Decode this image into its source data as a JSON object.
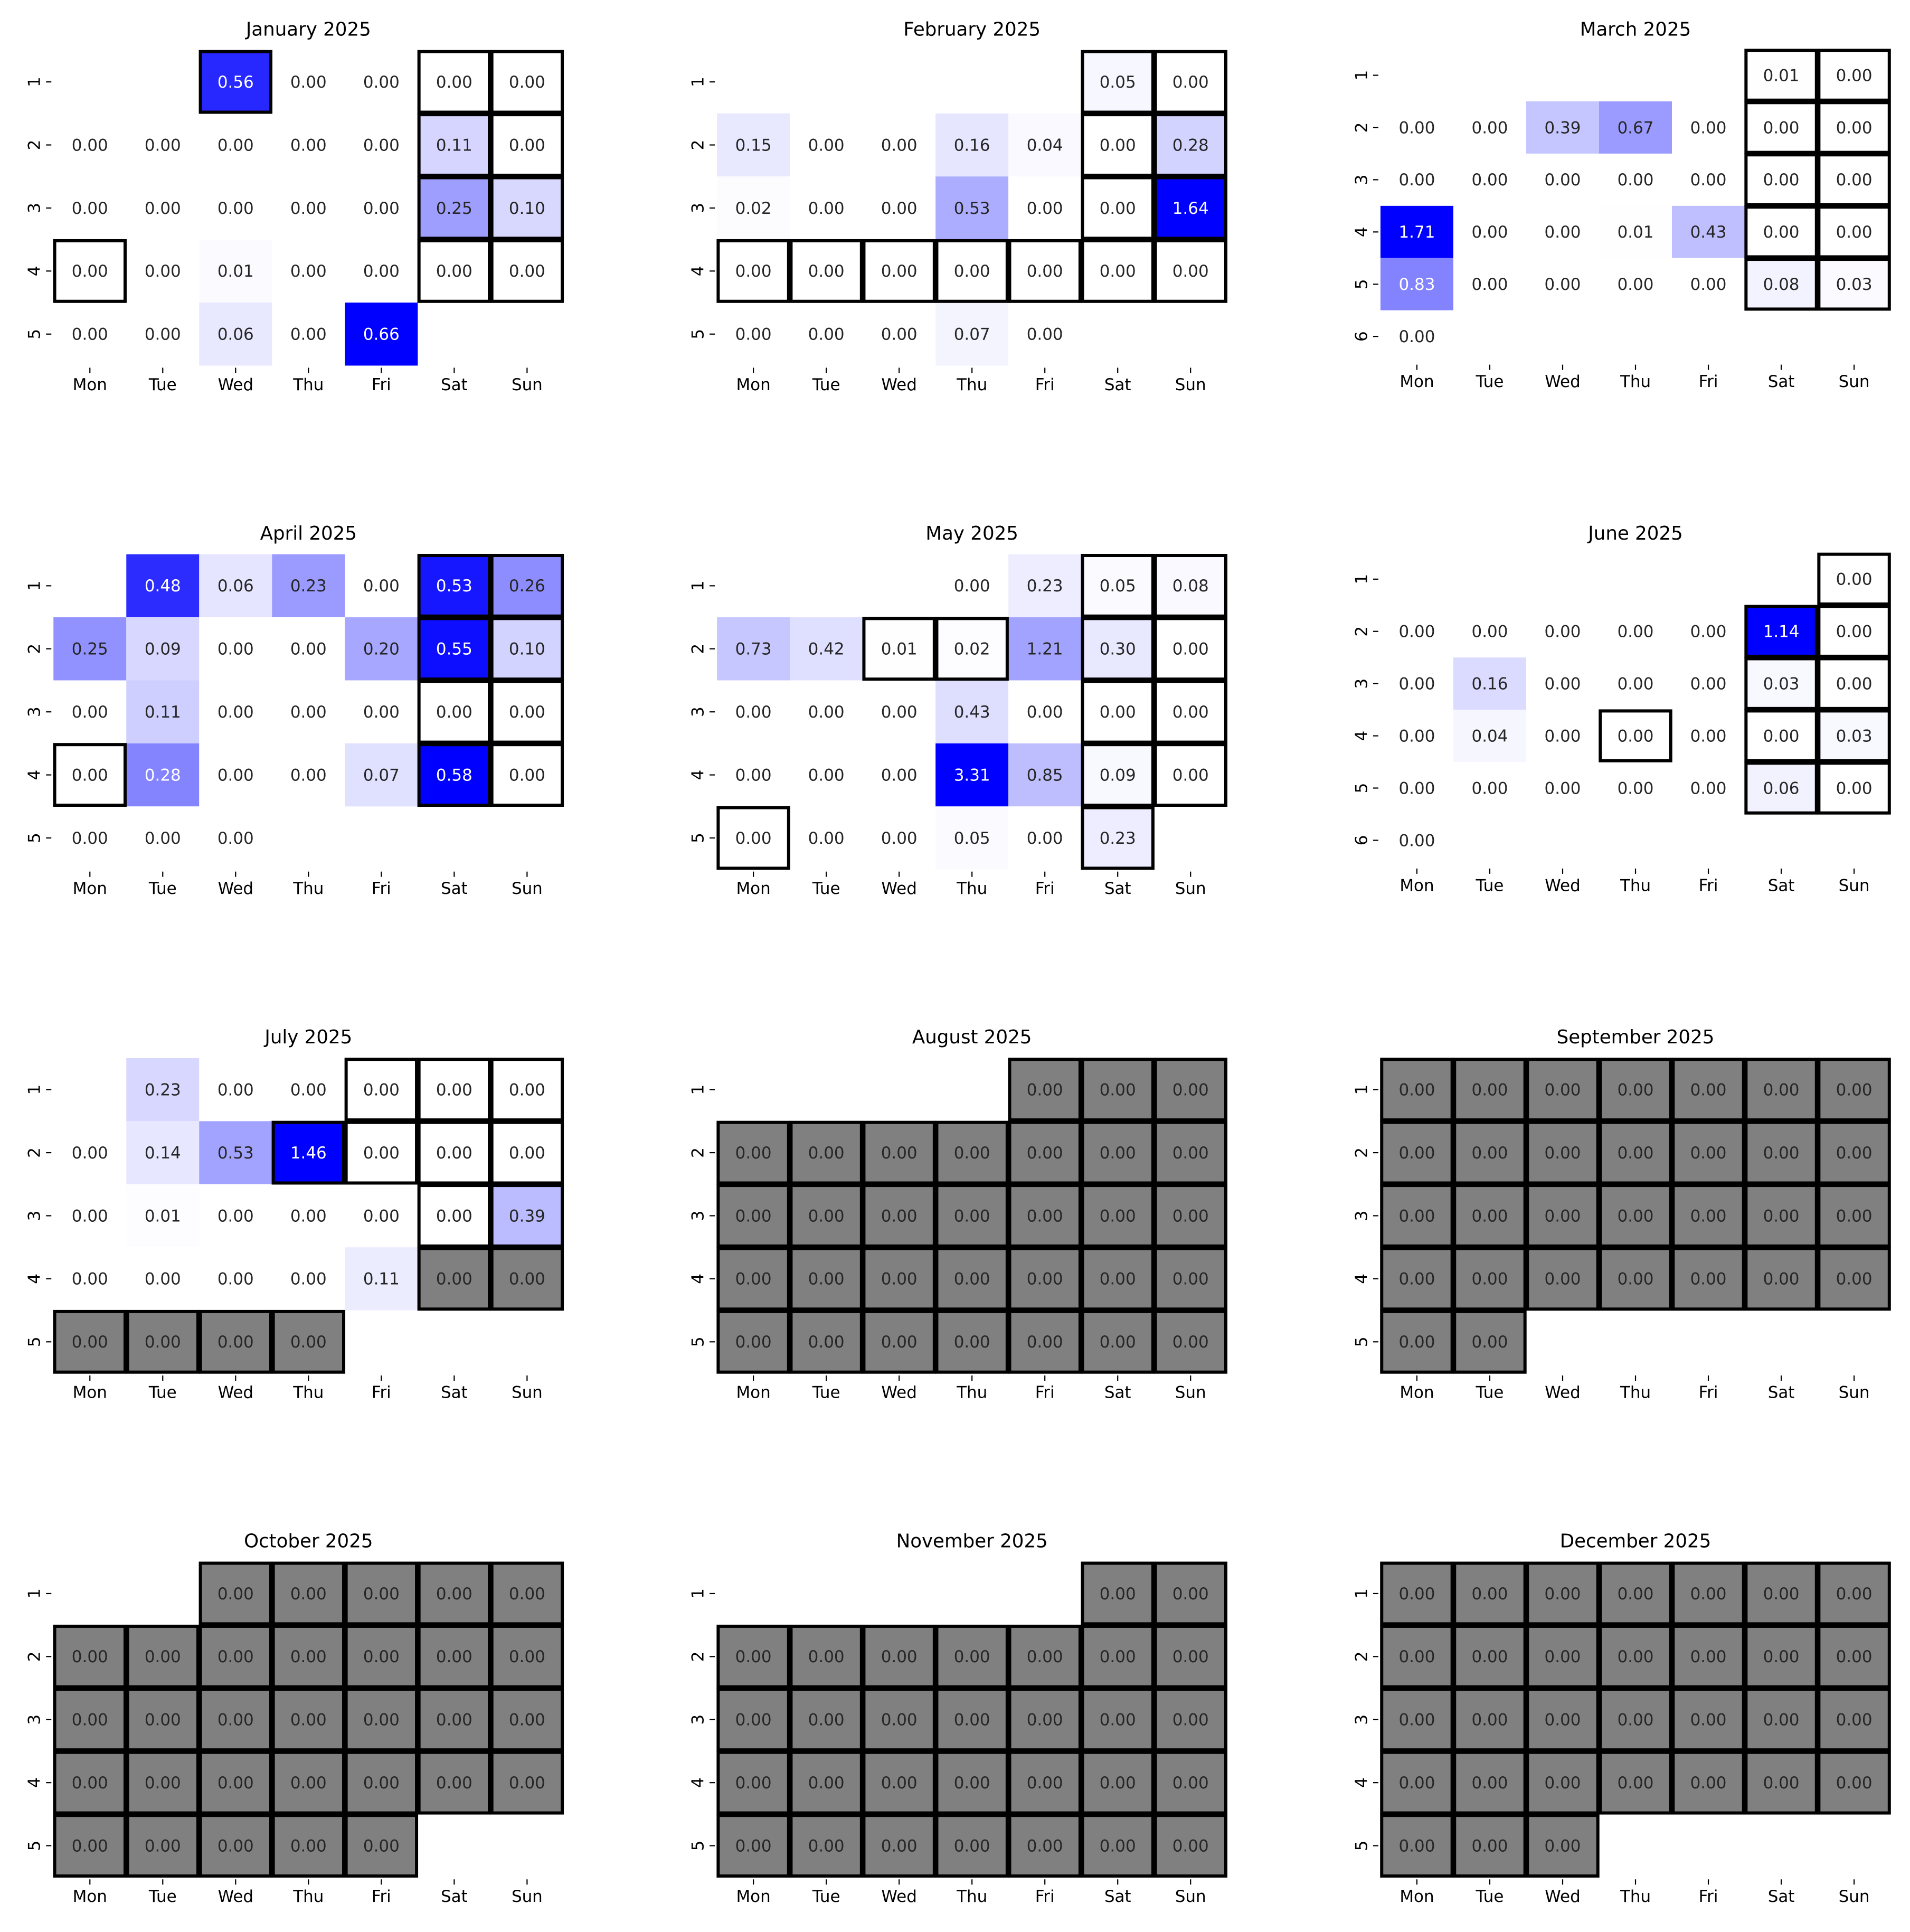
{
  "figure": {
    "weekday_labels": [
      "Mon",
      "Tue",
      "Wed",
      "Thu",
      "Fri",
      "Sat",
      "Sun"
    ],
    "colors": {
      "scale_low": "#ffffff",
      "scale_high": "#0000ff",
      "missing_fill": "#808080",
      "outline": "#000000"
    }
  },
  "chart_data": [
    {
      "type": "heatmap",
      "title": "January 2025",
      "week_labels": [
        "1",
        "2",
        "3",
        "4",
        "5"
      ],
      "values": [
        [
          null,
          null,
          0.56,
          0.0,
          0.0,
          0.0,
          0.0
        ],
        [
          0.0,
          0.0,
          0.0,
          0.0,
          0.0,
          0.11,
          0.0
        ],
        [
          0.0,
          0.0,
          0.0,
          0.0,
          0.0,
          0.25,
          0.1
        ],
        [
          0.0,
          0.0,
          0.01,
          0.0,
          0.0,
          0.0,
          0.0
        ],
        [
          0.0,
          0.0,
          0.06,
          0.0,
          0.66,
          null,
          null
        ]
      ],
      "missing": [],
      "outlined": [
        [
          0,
          2
        ],
        [
          0,
          5
        ],
        [
          0,
          6
        ],
        [
          1,
          5
        ],
        [
          1,
          6
        ],
        [
          2,
          5
        ],
        [
          2,
          6
        ],
        [
          3,
          0
        ],
        [
          3,
          5
        ],
        [
          3,
          6
        ]
      ]
    },
    {
      "type": "heatmap",
      "title": "February 2025",
      "week_labels": [
        "1",
        "2",
        "3",
        "4",
        "5"
      ],
      "values": [
        [
          null,
          null,
          null,
          null,
          null,
          0.05,
          0.0
        ],
        [
          0.15,
          0.0,
          0.0,
          0.16,
          0.04,
          0.0,
          0.28
        ],
        [
          0.02,
          0.0,
          0.0,
          0.53,
          0.0,
          0.0,
          1.64
        ],
        [
          0.0,
          0.0,
          0.0,
          0.0,
          0.0,
          0.0,
          0.0
        ],
        [
          0.0,
          0.0,
          0.0,
          0.07,
          0.0,
          null,
          null
        ]
      ],
      "missing": [],
      "outlined": [
        [
          0,
          5
        ],
        [
          0,
          6
        ],
        [
          1,
          5
        ],
        [
          1,
          6
        ],
        [
          2,
          5
        ],
        [
          2,
          6
        ],
        [
          3,
          0
        ],
        [
          3,
          1
        ],
        [
          3,
          2
        ],
        [
          3,
          3
        ],
        [
          3,
          4
        ],
        [
          3,
          5
        ],
        [
          3,
          6
        ]
      ]
    },
    {
      "type": "heatmap",
      "title": "March 2025",
      "week_labels": [
        "1",
        "2",
        "3",
        "4",
        "5",
        "6"
      ],
      "values": [
        [
          null,
          null,
          null,
          null,
          null,
          0.01,
          0.0
        ],
        [
          0.0,
          0.0,
          0.39,
          0.67,
          0.0,
          0.0,
          0.0
        ],
        [
          0.0,
          0.0,
          0.0,
          0.0,
          0.0,
          0.0,
          0.0
        ],
        [
          1.71,
          0.0,
          0.0,
          0.01,
          0.43,
          0.0,
          0.0
        ],
        [
          0.83,
          0.0,
          0.0,
          0.0,
          0.0,
          0.08,
          0.03
        ],
        [
          0.0,
          null,
          null,
          null,
          null,
          null,
          null
        ]
      ],
      "missing": [],
      "outlined": [
        [
          0,
          5
        ],
        [
          0,
          6
        ],
        [
          1,
          5
        ],
        [
          1,
          6
        ],
        [
          2,
          5
        ],
        [
          2,
          6
        ],
        [
          3,
          5
        ],
        [
          3,
          6
        ],
        [
          4,
          5
        ],
        [
          4,
          6
        ]
      ]
    },
    {
      "type": "heatmap",
      "title": "April 2025",
      "week_labels": [
        "1",
        "2",
        "3",
        "4",
        "5"
      ],
      "values": [
        [
          null,
          0.48,
          0.06,
          0.23,
          0.0,
          0.53,
          0.26
        ],
        [
          0.25,
          0.09,
          0.0,
          0.0,
          0.2,
          0.55,
          0.1
        ],
        [
          0.0,
          0.11,
          0.0,
          0.0,
          0.0,
          0.0,
          0.0
        ],
        [
          0.0,
          0.28,
          0.0,
          0.0,
          0.07,
          0.58,
          0.0
        ],
        [
          0.0,
          0.0,
          0.0,
          null,
          null,
          null,
          null
        ]
      ],
      "missing": [],
      "outlined": [
        [
          0,
          5
        ],
        [
          0,
          6
        ],
        [
          1,
          5
        ],
        [
          1,
          6
        ],
        [
          2,
          5
        ],
        [
          2,
          6
        ],
        [
          3,
          0
        ],
        [
          3,
          5
        ],
        [
          3,
          6
        ]
      ]
    },
    {
      "type": "heatmap",
      "title": "May 2025",
      "week_labels": [
        "1",
        "2",
        "3",
        "4",
        "5"
      ],
      "values": [
        [
          null,
          null,
          null,
          0.0,
          0.23,
          0.05,
          0.08
        ],
        [
          0.73,
          0.42,
          0.01,
          0.02,
          1.21,
          0.3,
          0.0
        ],
        [
          0.0,
          0.0,
          0.0,
          0.43,
          0.0,
          0.0,
          0.0
        ],
        [
          0.0,
          0.0,
          0.0,
          3.31,
          0.85,
          0.09,
          0.0
        ],
        [
          0.0,
          0.0,
          0.0,
          0.05,
          0.0,
          0.23,
          null
        ]
      ],
      "missing": [],
      "outlined": [
        [
          0,
          5
        ],
        [
          0,
          6
        ],
        [
          1,
          2
        ],
        [
          1,
          3
        ],
        [
          1,
          5
        ],
        [
          1,
          6
        ],
        [
          2,
          5
        ],
        [
          2,
          6
        ],
        [
          3,
          5
        ],
        [
          3,
          6
        ],
        [
          4,
          0
        ],
        [
          4,
          5
        ]
      ]
    },
    {
      "type": "heatmap",
      "title": "June 2025",
      "week_labels": [
        "1",
        "2",
        "3",
        "4",
        "5",
        "6"
      ],
      "values": [
        [
          null,
          null,
          null,
          null,
          null,
          null,
          0.0
        ],
        [
          0.0,
          0.0,
          0.0,
          0.0,
          0.0,
          1.14,
          0.0
        ],
        [
          0.0,
          0.16,
          0.0,
          0.0,
          0.0,
          0.03,
          0.0
        ],
        [
          0.0,
          0.04,
          0.0,
          0.0,
          0.0,
          0.0,
          0.03
        ],
        [
          0.0,
          0.0,
          0.0,
          0.0,
          0.0,
          0.06,
          0.0
        ],
        [
          0.0,
          null,
          null,
          null,
          null,
          null,
          null
        ]
      ],
      "missing": [],
      "outlined": [
        [
          0,
          6
        ],
        [
          1,
          5
        ],
        [
          1,
          6
        ],
        [
          2,
          5
        ],
        [
          2,
          6
        ],
        [
          3,
          3
        ],
        [
          3,
          5
        ],
        [
          3,
          6
        ],
        [
          4,
          5
        ],
        [
          4,
          6
        ]
      ]
    },
    {
      "type": "heatmap",
      "title": "July 2025",
      "week_labels": [
        "1",
        "2",
        "3",
        "4",
        "5"
      ],
      "values": [
        [
          null,
          0.23,
          0.0,
          0.0,
          0.0,
          0.0,
          0.0
        ],
        [
          0.0,
          0.14,
          0.53,
          1.46,
          0.0,
          0.0,
          0.0
        ],
        [
          0.0,
          0.01,
          0.0,
          0.0,
          0.0,
          0.0,
          0.39
        ],
        [
          0.0,
          0.0,
          0.0,
          0.0,
          0.11,
          0.0,
          0.0
        ],
        [
          0.0,
          0.0,
          0.0,
          0.0,
          null,
          null,
          null
        ]
      ],
      "missing": [
        [
          3,
          5
        ],
        [
          3,
          6
        ],
        [
          4,
          0
        ],
        [
          4,
          1
        ],
        [
          4,
          2
        ],
        [
          4,
          3
        ]
      ],
      "outlined": [
        [
          0,
          4
        ],
        [
          0,
          5
        ],
        [
          0,
          6
        ],
        [
          1,
          3
        ],
        [
          1,
          4
        ],
        [
          1,
          5
        ],
        [
          1,
          6
        ],
        [
          2,
          5
        ],
        [
          2,
          6
        ],
        [
          3,
          5
        ],
        [
          3,
          6
        ],
        [
          4,
          0
        ],
        [
          4,
          1
        ],
        [
          4,
          2
        ],
        [
          4,
          3
        ]
      ]
    },
    {
      "type": "heatmap",
      "title": "August 2025",
      "week_labels": [
        "1",
        "2",
        "3",
        "4",
        "5"
      ],
      "values": [
        [
          null,
          null,
          null,
          null,
          0.0,
          0.0,
          0.0
        ],
        [
          0.0,
          0.0,
          0.0,
          0.0,
          0.0,
          0.0,
          0.0
        ],
        [
          0.0,
          0.0,
          0.0,
          0.0,
          0.0,
          0.0,
          0.0
        ],
        [
          0.0,
          0.0,
          0.0,
          0.0,
          0.0,
          0.0,
          0.0
        ],
        [
          0.0,
          0.0,
          0.0,
          0.0,
          0.0,
          0.0,
          0.0
        ]
      ],
      "missing": "all",
      "outlined": "all"
    },
    {
      "type": "heatmap",
      "title": "September 2025",
      "week_labels": [
        "1",
        "2",
        "3",
        "4",
        "5"
      ],
      "values": [
        [
          0.0,
          0.0,
          0.0,
          0.0,
          0.0,
          0.0,
          0.0
        ],
        [
          0.0,
          0.0,
          0.0,
          0.0,
          0.0,
          0.0,
          0.0
        ],
        [
          0.0,
          0.0,
          0.0,
          0.0,
          0.0,
          0.0,
          0.0
        ],
        [
          0.0,
          0.0,
          0.0,
          0.0,
          0.0,
          0.0,
          0.0
        ],
        [
          0.0,
          0.0,
          null,
          null,
          null,
          null,
          null
        ]
      ],
      "missing": "all",
      "outlined": "all"
    },
    {
      "type": "heatmap",
      "title": "October 2025",
      "week_labels": [
        "1",
        "2",
        "3",
        "4",
        "5"
      ],
      "values": [
        [
          null,
          null,
          0.0,
          0.0,
          0.0,
          0.0,
          0.0
        ],
        [
          0.0,
          0.0,
          0.0,
          0.0,
          0.0,
          0.0,
          0.0
        ],
        [
          0.0,
          0.0,
          0.0,
          0.0,
          0.0,
          0.0,
          0.0
        ],
        [
          0.0,
          0.0,
          0.0,
          0.0,
          0.0,
          0.0,
          0.0
        ],
        [
          0.0,
          0.0,
          0.0,
          0.0,
          0.0,
          null,
          null
        ]
      ],
      "missing": "all",
      "outlined": "all"
    },
    {
      "type": "heatmap",
      "title": "November 2025",
      "week_labels": [
        "1",
        "2",
        "3",
        "4",
        "5"
      ],
      "values": [
        [
          null,
          null,
          null,
          null,
          null,
          0.0,
          0.0
        ],
        [
          0.0,
          0.0,
          0.0,
          0.0,
          0.0,
          0.0,
          0.0
        ],
        [
          0.0,
          0.0,
          0.0,
          0.0,
          0.0,
          0.0,
          0.0
        ],
        [
          0.0,
          0.0,
          0.0,
          0.0,
          0.0,
          0.0,
          0.0
        ],
        [
          0.0,
          0.0,
          0.0,
          0.0,
          0.0,
          0.0,
          0.0
        ]
      ],
      "missing": "all",
      "outlined": "all"
    },
    {
      "type": "heatmap",
      "title": "December 2025",
      "week_labels": [
        "1",
        "2",
        "3",
        "4",
        "5"
      ],
      "values": [
        [
          0.0,
          0.0,
          0.0,
          0.0,
          0.0,
          0.0,
          0.0
        ],
        [
          0.0,
          0.0,
          0.0,
          0.0,
          0.0,
          0.0,
          0.0
        ],
        [
          0.0,
          0.0,
          0.0,
          0.0,
          0.0,
          0.0,
          0.0
        ],
        [
          0.0,
          0.0,
          0.0,
          0.0,
          0.0,
          0.0,
          0.0
        ],
        [
          0.0,
          0.0,
          0.0,
          null,
          null,
          null,
          null
        ]
      ],
      "missing": "all",
      "outlined": "all"
    }
  ]
}
